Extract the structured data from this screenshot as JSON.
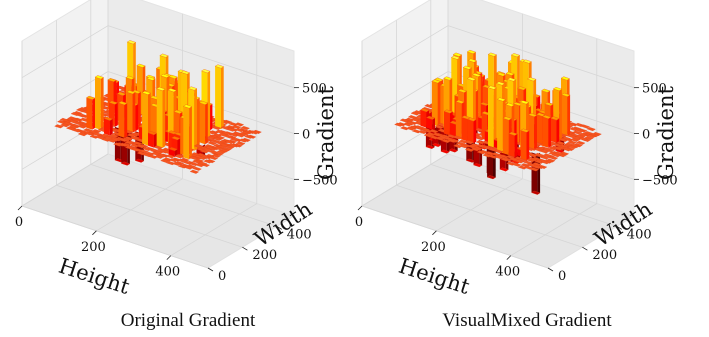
{
  "chart_data": [
    {
      "type": "surface",
      "title": "Original Gradient",
      "xlabel": "Height",
      "ylabel": "Width",
      "zlabel": "Gradient",
      "x_ticks": [
        0,
        200,
        400
      ],
      "y_ticks": [
        0,
        200,
        400
      ],
      "z_ticks": [
        500,
        0,
        -500
      ],
      "x_tick_labels": [
        "0",
        "200",
        "400"
      ],
      "y_tick_labels": [
        "0",
        "200",
        "400"
      ],
      "z_tick_labels": [
        "500",
        "0",
        "−500"
      ],
      "xlim": [
        0,
        500
      ],
      "ylim": [
        0,
        500
      ],
      "zlim": [
        -900,
        900
      ],
      "colormap": "hot",
      "colors": {
        "base": "#f5551e",
        "low": "#7a0a04",
        "high": "#fff27a",
        "pane": "#f2f2f2",
        "grid": "#d6d6d6"
      }
    },
    {
      "type": "surface",
      "title": "VisualMixed Gradient",
      "xlabel": "Height",
      "ylabel": "Width",
      "zlabel": "Gradient",
      "x_ticks": [
        0,
        200,
        400
      ],
      "y_ticks": [
        0,
        200,
        400
      ],
      "z_ticks": [
        500,
        0,
        -500
      ],
      "x_tick_labels": [
        "0",
        "200",
        "400"
      ],
      "y_tick_labels": [
        "0",
        "200",
        "400"
      ],
      "z_tick_labels": [
        "500",
        "0",
        "−500"
      ],
      "xlim": [
        0,
        500
      ],
      "ylim": [
        0,
        500
      ],
      "zlim": [
        -900,
        900
      ],
      "colormap": "hot",
      "colors": {
        "base": "#f5551e",
        "low": "#7a0a04",
        "high": "#fff27a",
        "pane": "#f2f2f2",
        "grid": "#d6d6d6"
      }
    }
  ]
}
